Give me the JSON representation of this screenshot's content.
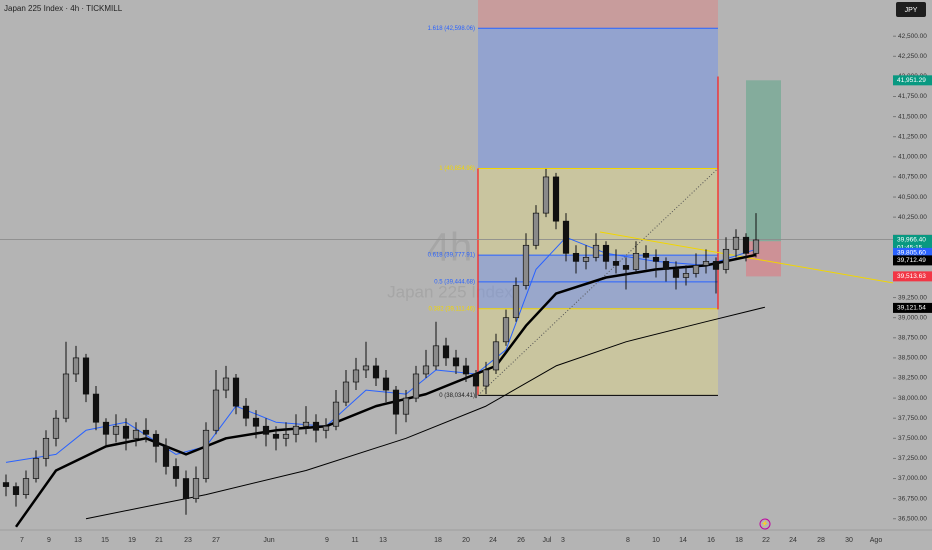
{
  "chart_data": {
    "type": "candlestick",
    "title": "Japan 225 Index · 4h · TICKMILL",
    "currency": "JPY",
    "watermark": [
      "4h",
      "Japan 225 Index"
    ],
    "up_color": "#3a3a3a",
    "down_color": "#111111",
    "xlim": [
      -0.6,
      88.7
    ],
    "ylim": [
      36360,
      42950
    ],
    "xticks": [
      {
        "value": 1.6,
        "label": "7"
      },
      {
        "value": 4.3,
        "label": "9"
      },
      {
        "value": 7.2,
        "label": "13"
      },
      {
        "value": 9.9,
        "label": "15"
      },
      {
        "value": 12.6,
        "label": "19"
      },
      {
        "value": 15.3,
        "label": "21"
      },
      {
        "value": 18.2,
        "label": "23"
      },
      {
        "value": 21,
        "label": "27"
      },
      {
        "value": 26.3,
        "label": "Jun"
      },
      {
        "value": 32.1,
        "label": "9"
      },
      {
        "value": 34.9,
        "label": "11"
      },
      {
        "value": 37.7,
        "label": "13"
      },
      {
        "value": 43.2,
        "label": "18"
      },
      {
        "value": 46,
        "label": "20"
      },
      {
        "value": 48.7,
        "label": "24"
      },
      {
        "value": 51.5,
        "label": "26"
      },
      {
        "value": 54.1,
        "label": "Jul"
      },
      {
        "value": 55.7,
        "label": "3"
      },
      {
        "value": 62.2,
        "label": "8"
      },
      {
        "value": 65,
        "label": "10"
      },
      {
        "value": 67.7,
        "label": "14"
      },
      {
        "value": 70.5,
        "label": "16"
      },
      {
        "value": 73.3,
        "label": "18"
      },
      {
        "value": 76,
        "label": "22"
      },
      {
        "value": 78.7,
        "label": "24"
      },
      {
        "value": 81.5,
        "label": "28"
      },
      {
        "value": 84.3,
        "label": "30"
      },
      {
        "value": 87,
        "label": "Ago"
      }
    ],
    "yticks": [
      {
        "value": 42500,
        "label": "42,500.00"
      },
      {
        "value": 42250,
        "label": "42,250.00"
      },
      {
        "value": 42000,
        "label": "42,000.00"
      },
      {
        "value": 41750,
        "label": "41,750.00"
      },
      {
        "value": 41500,
        "label": "41,500.00"
      },
      {
        "value": 41250,
        "label": "41,250.00"
      },
      {
        "value": 41000,
        "label": "41,000.00"
      },
      {
        "value": 40750,
        "label": "40,750.00"
      },
      {
        "value": 40500,
        "label": "40,500.00"
      },
      {
        "value": 40250,
        "label": "40,250.00"
      },
      {
        "value": 40000,
        "label": "40,000.00"
      },
      {
        "value": 39750,
        "label": "39,750.00"
      },
      {
        "value": 39500,
        "label": "39,500.00"
      },
      {
        "value": 39250,
        "label": "39,250.00"
      },
      {
        "value": 39000,
        "label": "39,000.00"
      },
      {
        "value": 38750,
        "label": "38,750.00"
      },
      {
        "value": 38500,
        "label": "38,500.00"
      },
      {
        "value": 38250,
        "label": "38,250.00"
      },
      {
        "value": 38000,
        "label": "38,000.00"
      },
      {
        "value": 37750,
        "label": "37,750.00"
      },
      {
        "value": 37500,
        "label": "37,500.00"
      },
      {
        "value": 37250,
        "label": "37,250.00"
      },
      {
        "value": 37000,
        "label": "37,000.00"
      },
      {
        "value": 36750,
        "label": "36,750.00"
      },
      {
        "value": 36500,
        "label": "36,500.00"
      }
    ],
    "candles": [
      [
        36950,
        37050,
        36780,
        36900
      ],
      [
        36900,
        36950,
        36650,
        36800
      ],
      [
        36800,
        37100,
        36750,
        37000
      ],
      [
        37000,
        37350,
        36950,
        37250
      ],
      [
        37250,
        37600,
        37150,
        37500
      ],
      [
        37500,
        37850,
        37400,
        37750
      ],
      [
        37750,
        38700,
        37700,
        38300
      ],
      [
        38300,
        38650,
        38200,
        38500
      ],
      [
        38500,
        38550,
        37950,
        38050
      ],
      [
        38050,
        38150,
        37600,
        37700
      ],
      [
        37700,
        37750,
        37400,
        37550
      ],
      [
        37550,
        37800,
        37450,
        37650
      ],
      [
        37650,
        37750,
        37350,
        37500
      ],
      [
        37500,
        37700,
        37400,
        37600
      ],
      [
        37600,
        37750,
        37450,
        37550
      ],
      [
        37550,
        37600,
        37200,
        37400
      ],
      [
        37400,
        37500,
        37050,
        37150
      ],
      [
        37150,
        37250,
        36900,
        37000
      ],
      [
        37000,
        37100,
        36550,
        36750
      ],
      [
        36750,
        37150,
        36700,
        37000
      ],
      [
        37000,
        37700,
        36950,
        37600
      ],
      [
        37600,
        38350,
        37550,
        38100
      ],
      [
        38100,
        38400,
        38000,
        38250
      ],
      [
        38250,
        38300,
        37800,
        37900
      ],
      [
        37900,
        38000,
        37650,
        37750
      ],
      [
        37750,
        37850,
        37500,
        37650
      ],
      [
        37650,
        37750,
        37400,
        37550
      ],
      [
        37550,
        37650,
        37350,
        37500
      ],
      [
        37500,
        37700,
        37400,
        37550
      ],
      [
        37550,
        37800,
        37450,
        37650
      ],
      [
        37650,
        37900,
        37550,
        37700
      ],
      [
        37700,
        37800,
        37450,
        37600
      ],
      [
        37600,
        37750,
        37500,
        37650
      ],
      [
        37650,
        38100,
        37600,
        37950
      ],
      [
        37950,
        38350,
        37900,
        38200
      ],
      [
        38200,
        38500,
        38100,
        38350
      ],
      [
        38350,
        38700,
        38250,
        38400
      ],
      [
        38400,
        38500,
        38150,
        38250
      ],
      [
        38250,
        38350,
        37950,
        38100
      ],
      [
        38100,
        38150,
        37550,
        37800
      ],
      [
        37800,
        38100,
        37700,
        38000
      ],
      [
        38000,
        38400,
        37950,
        38300
      ],
      [
        38300,
        38600,
        38250,
        38400
      ],
      [
        38400,
        38950,
        38350,
        38650
      ],
      [
        38650,
        38750,
        38400,
        38500
      ],
      [
        38500,
        38600,
        38300,
        38400
      ],
      [
        38400,
        38500,
        38200,
        38300
      ],
      [
        38300,
        38350,
        38000,
        38150
      ],
      [
        38150,
        38450,
        38050,
        38350
      ],
      [
        38350,
        38800,
        38300,
        38700
      ],
      [
        38700,
        39100,
        38650,
        39000
      ],
      [
        39000,
        39500,
        38950,
        39400
      ],
      [
        39400,
        40050,
        39350,
        39900
      ],
      [
        39900,
        40400,
        39850,
        40300
      ],
      [
        40300,
        40850,
        40250,
        40750
      ],
      [
        40750,
        40800,
        40100,
        40200
      ],
      [
        40200,
        40300,
        39700,
        39800
      ],
      [
        39800,
        39900,
        39550,
        39700
      ],
      [
        39700,
        39900,
        39600,
        39750
      ],
      [
        39750,
        40050,
        39700,
        39900
      ],
      [
        39900,
        39950,
        39600,
        39700
      ],
      [
        39700,
        39850,
        39550,
        39650
      ],
      [
        39650,
        39750,
        39350,
        39600
      ],
      [
        39600,
        39950,
        39550,
        39800
      ],
      [
        39800,
        39900,
        39600,
        39750
      ],
      [
        39750,
        39850,
        39500,
        39700
      ],
      [
        39700,
        39750,
        39450,
        39600
      ],
      [
        39600,
        39700,
        39350,
        39500
      ],
      [
        39500,
        39650,
        39400,
        39550
      ],
      [
        39550,
        39800,
        39500,
        39650
      ],
      [
        39650,
        39850,
        39550,
        39700
      ],
      [
        39700,
        39750,
        39300,
        39600
      ],
      [
        39600,
        40000,
        39550,
        39850
      ],
      [
        39850,
        40100,
        39750,
        40000
      ],
      [
        40000,
        40050,
        39700,
        39800
      ],
      [
        39800,
        40300,
        39750,
        39966
      ]
    ],
    "series": [
      {
        "name": "MA fast",
        "color": "#2962ff",
        "width": 1,
        "x": [
          0,
          5,
          8,
          12,
          17,
          20,
          23,
          27,
          32,
          36,
          40,
          43,
          47,
          50,
          53,
          56,
          60,
          65,
          70,
          75
        ],
        "values": [
          37200,
          37300,
          37600,
          37700,
          37300,
          37400,
          37900,
          37700,
          37650,
          38100,
          38050,
          38350,
          38300,
          38600,
          39600,
          40000,
          39800,
          39700,
          39650,
          39850
        ]
      },
      {
        "name": "MA mid",
        "color": "#000000",
        "width": 2.5,
        "x": [
          1,
          5,
          10,
          14,
          18,
          22,
          27,
          32,
          37,
          42,
          46,
          49,
          52,
          55,
          60,
          65,
          70,
          75
        ],
        "values": [
          36400,
          37100,
          37400,
          37500,
          37300,
          37500,
          37600,
          37650,
          37900,
          38050,
          38250,
          38400,
          38900,
          39300,
          39500,
          39600,
          39650,
          39780
        ]
      },
      {
        "name": "MA slow",
        "color": "#000000",
        "width": 1,
        "x": [
          8,
          20,
          30,
          40,
          48,
          55,
          62,
          70,
          75.9
        ],
        "values": [
          36500,
          36800,
          37100,
          37500,
          37900,
          38400,
          38700,
          38950,
          39130
        ]
      }
    ],
    "fib": {
      "x": [
        47.2,
        71.2
      ],
      "levels": [
        {
          "value": 38034.41,
          "label": "0 (38,034.41)",
          "color": "#000000"
        },
        {
          "value": 39111.46,
          "label": "0.382 (39,111.46)",
          "color": "#f2d600"
        },
        {
          "value": 39444.68,
          "label": "0.5 (39,444.68)",
          "color": "#2962ff"
        },
        {
          "value": 39777.91,
          "label": "0.618 (39,777.91)",
          "color": "#2962ff"
        },
        {
          "value": 40854.96,
          "label": "1 (40,854.96)",
          "color": "#f2d600"
        },
        {
          "value": 42598.06,
          "label": "1.618 (42,598.06)",
          "color": "#2962ff"
        }
      ],
      "zone_colors": [
        "rgba(240,230,120,0.35)",
        "rgba(120,150,230,0.45)",
        "rgba(120,150,230,0.45)",
        "rgba(240,230,120,0.35)",
        "rgba(120,150,230,0.55)",
        "rgba(230,120,120,0.4)"
      ],
      "edge_color": "#ff1a1a"
    },
    "trendline": {
      "x": [
        59.4,
        88.7
      ],
      "values": [
        40065,
        39432
      ],
      "color": "#f2d600"
    },
    "diagonal": {
      "x": [
        47.2,
        71.2
      ],
      "values": [
        38034.41,
        40854.96
      ]
    },
    "position": {
      "x": [
        74,
        77.5
      ],
      "entry": 39950,
      "target": 41951.29,
      "stop": 39513.63
    },
    "markers": [
      {
        "value": 41951.29,
        "label": "41,951.29",
        "color": "#089981"
      },
      {
        "value": 39972.85,
        "label": "39,972.85",
        "color": "#9a9a9a"
      },
      {
        "value": 39966.4,
        "label": "39,966.40",
        "sub": "01:45:15",
        "color": "#089981"
      },
      {
        "value": 39805.6,
        "label": "39,805.60",
        "color": "#2962ff"
      },
      {
        "value": 39720.46,
        "label": "39,720.46",
        "color": "#2962ff"
      },
      {
        "value": 39712.49,
        "label": "39,712.49",
        "color": "#000000"
      },
      {
        "value": 39513.63,
        "label": "39,513.63",
        "color": "#f23645"
      },
      {
        "value": 39121.54,
        "label": "39,121.54",
        "color": "#000000"
      }
    ]
  }
}
